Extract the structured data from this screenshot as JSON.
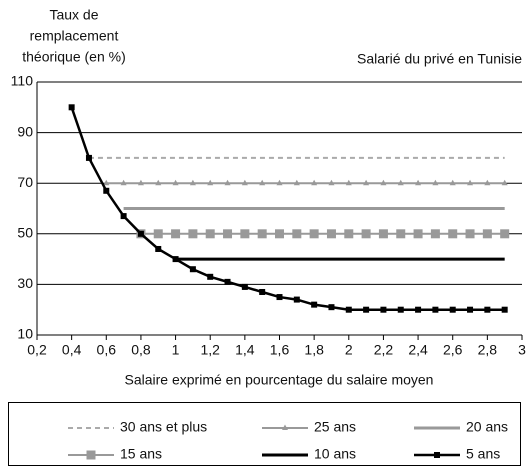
{
  "chart_data": {
    "type": "line",
    "ylabel": [
      "Taux de",
      "remplacement",
      "théorique (en %)"
    ],
    "subtitle": "Salarié du privé en Tunisie",
    "xlabel": "Salaire exprimé en pourcentage du salaire moyen",
    "x": [
      0.4,
      0.5,
      0.6,
      0.7,
      0.8,
      0.9,
      1,
      1.1,
      1.2,
      1.3,
      1.4,
      1.5,
      1.6,
      1.7,
      1.8,
      1.9,
      2,
      2.1,
      2.2,
      2.3,
      2.4,
      2.5,
      2.6,
      2.7,
      2.8,
      2.9
    ],
    "series": [
      {
        "name": "30 ans et plus",
        "color": "#aaaaaa",
        "style": "dashed",
        "values": [
          null,
          80,
          80,
          80,
          80,
          80,
          80,
          80,
          80,
          80,
          80,
          80,
          80,
          80,
          80,
          80,
          80,
          80,
          80,
          80,
          80,
          80,
          80,
          80,
          80,
          80
        ]
      },
      {
        "name": "25 ans",
        "color": "#999999",
        "marker": "triangle",
        "values": [
          null,
          null,
          70,
          70,
          70,
          70,
          70,
          70,
          70,
          70,
          70,
          70,
          70,
          70,
          70,
          70,
          70,
          70,
          70,
          70,
          70,
          70,
          70,
          70,
          70,
          70
        ]
      },
      {
        "name": "20 ans",
        "color": "#999999",
        "width": 3,
        "values": [
          null,
          null,
          null,
          60,
          60,
          60,
          60,
          60,
          60,
          60,
          60,
          60,
          60,
          60,
          60,
          60,
          60,
          60,
          60,
          60,
          60,
          60,
          60,
          60,
          60,
          60
        ]
      },
      {
        "name": "15 ans",
        "color": "#999999",
        "marker": "square",
        "values": [
          null,
          null,
          null,
          null,
          50,
          50,
          50,
          50,
          50,
          50,
          50,
          50,
          50,
          50,
          50,
          50,
          50,
          50,
          50,
          50,
          50,
          50,
          50,
          50,
          50,
          50
        ]
      },
      {
        "name": "10 ans",
        "color": "#000000",
        "width": 3,
        "values": [
          null,
          null,
          null,
          null,
          null,
          null,
          40,
          40,
          40,
          40,
          40,
          40,
          40,
          40,
          40,
          40,
          40,
          40,
          40,
          40,
          40,
          40,
          40,
          40,
          40,
          40
        ]
      },
      {
        "name": "5 ans",
        "color": "#000000",
        "width": 2.5,
        "marker": "square",
        "values": [
          100,
          80,
          67,
          57,
          50,
          44,
          40,
          36,
          33,
          31,
          29,
          27,
          25,
          24,
          22,
          21,
          20,
          20,
          20,
          20,
          20,
          20,
          20,
          20,
          20,
          20
        ]
      }
    ],
    "xlim": [
      0.2,
      3
    ],
    "xticks": [
      {
        "value": 0.2,
        "label": "0,2"
      },
      {
        "value": 0.4,
        "label": "0,4"
      },
      {
        "value": 0.6,
        "label": "0,6"
      },
      {
        "value": 0.8,
        "label": "0,8"
      },
      1,
      {
        "value": 1.2,
        "label": "1,2"
      },
      {
        "value": 1.4,
        "label": "1,4"
      },
      {
        "value": 1.6,
        "label": "1,6"
      },
      {
        "value": 1.8,
        "label": "1,8"
      },
      2,
      {
        "value": 2.2,
        "label": "2,2"
      },
      {
        "value": 2.4,
        "label": "2,4"
      },
      {
        "value": 2.6,
        "label": "2,6"
      },
      {
        "value": 2.8,
        "label": "2,8"
      },
      3
    ],
    "ylim": [
      10,
      110
    ],
    "yticks": [
      10,
      30,
      50,
      70,
      90,
      110
    ],
    "grid": true,
    "legend": "bottom"
  }
}
